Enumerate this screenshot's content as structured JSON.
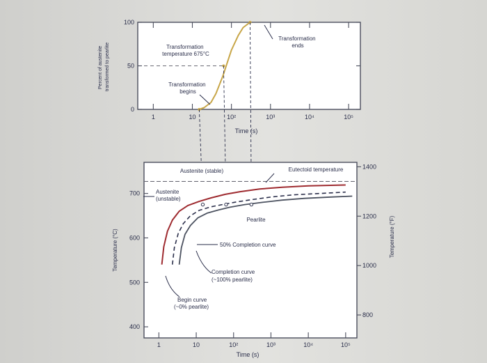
{
  "chart_data": [
    {
      "type": "line",
      "xscale": "log",
      "x_ticks": [
        "1",
        "10",
        "10²",
        "10³",
        "10⁴",
        "10⁵"
      ],
      "x_tick_values": [
        1,
        10,
        100,
        1000,
        10000,
        100000
      ],
      "xlabel": "Time (s)",
      "ylabel": "Percent of austenite transformed to pearlite",
      "y_ticks": [
        "0",
        "50",
        "100"
      ],
      "ylim": [
        0,
        100
      ],
      "xlim": [
        0.4,
        200000
      ],
      "grid": false,
      "series": [
        {
          "x": [
            15,
            20,
            30,
            40,
            60,
            80,
            100,
            150,
            200,
            300
          ],
          "y": [
            0,
            2,
            8,
            18,
            38,
            55,
            68,
            85,
            94,
            100
          ]
        }
      ],
      "reference_lines": [
        {
          "y": 50
        }
      ],
      "annotations": {
        "temperature": "Transformation temperature 675°C",
        "begins": "Transformation begins",
        "ends": "Transformation ends"
      }
    },
    {
      "type": "line",
      "xscale": "log",
      "x_ticks": [
        "1",
        "10",
        "10²",
        "10³",
        "10⁴",
        "10⁵"
      ],
      "x_tick_values": [
        1,
        10,
        100,
        1000,
        10000,
        100000
      ],
      "xlabel": "Time (s)",
      "ylabel": "Temperature (°C)",
      "y_ticks": [
        "400",
        "500",
        "600",
        "700"
      ],
      "ylim": [
        375,
        770
      ],
      "y2label": "Temperature (°F)",
      "y2_ticks": [
        "800",
        "1000",
        "1200",
        "1400"
      ],
      "xlim": [
        0.4,
        200000
      ],
      "grid": false,
      "eutectoid_temperature_c": 727,
      "series": [
        {
          "x": [
            1.2,
            1.35,
            1.7,
            2.3,
            3.5,
            6,
            12,
            25,
            60,
            150,
            500,
            2000,
            10000,
            100000
          ],
          "y": [
            540,
            580,
            615,
            640,
            660,
            673,
            682,
            690,
            698,
            704,
            710,
            714,
            717,
            719
          ]
        },
        {
          "x": [
            2.3,
            2.6,
            3.3,
            4.5,
            7,
            12,
            25,
            50,
            120,
            300,
            1000,
            4000,
            20000,
            100000
          ],
          "y": [
            540,
            578,
            610,
            632,
            650,
            662,
            670,
            675,
            681,
            686,
            692,
            697,
            700,
            703
          ]
        },
        {
          "x": [
            3.5,
            4,
            5,
            7,
            11,
            20,
            40,
            80,
            200,
            600,
            2000,
            8000,
            40000,
            150000
          ],
          "y": [
            540,
            578,
            608,
            628,
            645,
            656,
            663,
            669,
            675,
            680,
            685,
            689,
            692,
            694
          ]
        }
      ],
      "labels": {
        "stable": "Austenite (stable)",
        "eutectoid": "Eutectoid temperature",
        "unstable": "Austenite (unstable)",
        "pearlite": "Pearlite",
        "fifty": "50% Completion curve",
        "completion": "Completion curve (~100% pearlite)",
        "begin": "Begin curve (~0% pearlite)"
      }
    }
  ]
}
